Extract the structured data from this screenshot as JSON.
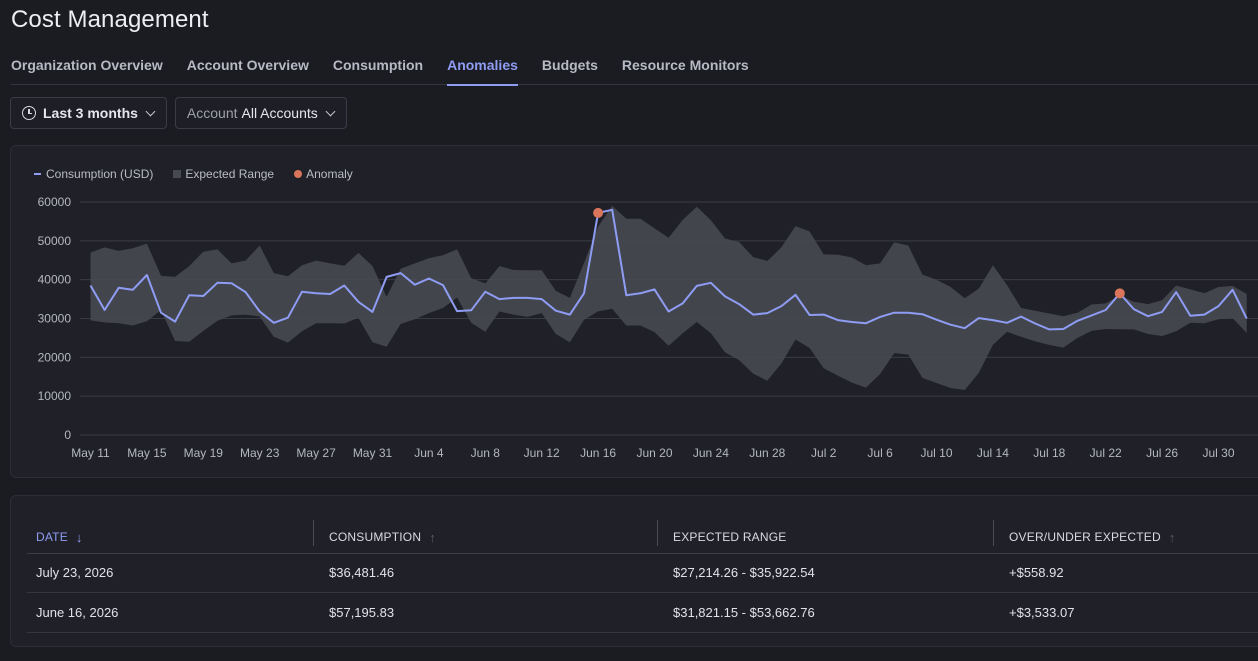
{
  "page": {
    "title": "Cost Management"
  },
  "tabs": [
    {
      "label": "Organization Overview",
      "active": false
    },
    {
      "label": "Account Overview",
      "active": false
    },
    {
      "label": "Consumption",
      "active": false
    },
    {
      "label": "Anomalies",
      "active": true
    },
    {
      "label": "Budgets",
      "active": false
    },
    {
      "label": "Resource Monitors",
      "active": false
    }
  ],
  "filters": {
    "time_range": {
      "value": "Last 3 months",
      "icon": "clock-icon"
    },
    "account": {
      "label": "Account",
      "value": "All Accounts"
    }
  },
  "colors": {
    "accent": "#8e9cf3",
    "anomaly": "#d9755a",
    "range": "#474951"
  },
  "legend": {
    "consumption": "Consumption (USD)",
    "range": "Expected Range",
    "anomaly": "Anomaly"
  },
  "chart_data": {
    "type": "line",
    "ylim": [
      0,
      60000
    ],
    "yticks": [
      "60000",
      "50000",
      "40000",
      "30000",
      "20000",
      "10000",
      "0"
    ],
    "xtick_labels": [
      "May 11",
      "May 15",
      "May 19",
      "May 23",
      "May 27",
      "May 31",
      "Jun 4",
      "Jun 8",
      "Jun 12",
      "Jun 16",
      "Jun 20",
      "Jun 24",
      "Jun 28",
      "Jul 2",
      "Jul 6",
      "Jul 10",
      "Jul 14",
      "Jul 18",
      "Jul 22",
      "Jul 26",
      "Jul 30"
    ],
    "start_date": "2026-05-11",
    "series": [
      {
        "name": "Consumption (USD)",
        "values": [
          38500,
          32200,
          37900,
          37400,
          41200,
          31500,
          29200,
          36000,
          35800,
          39200,
          39100,
          36800,
          31800,
          28900,
          30200,
          36900,
          36500,
          36300,
          38500,
          34300,
          31700,
          40700,
          41700,
          38700,
          40300,
          38600,
          31900,
          32100,
          36900,
          35000,
          35300,
          35300,
          35000,
          32000,
          31000,
          36500,
          57195.83,
          58000,
          36000,
          36500,
          37500,
          31800,
          33900,
          38400,
          39200,
          35700,
          33700,
          31000,
          31400,
          33200,
          36100,
          30900,
          31000,
          29600,
          29100,
          28800,
          30400,
          31500,
          31500,
          31100,
          29700,
          28400,
          27500,
          30100,
          29600,
          28900,
          30500,
          28700,
          27200,
          27300,
          29400,
          30800,
          32200,
          36481.46,
          32400,
          30600,
          31700,
          36800,
          30700,
          31000,
          33200,
          37400,
          30000
        ]
      },
      {
        "name": "Expected Range",
        "low": [
          29500,
          29000,
          28800,
          28200,
          29300,
          32200,
          24200,
          24000,
          26800,
          29400,
          30800,
          31000,
          30500,
          25300,
          23800,
          26700,
          28800,
          28800,
          28700,
          30200,
          23900,
          22700,
          28600,
          29800,
          31400,
          32700,
          35400,
          28900,
          26600,
          31800,
          31000,
          30400,
          31400,
          26000,
          23900,
          29700,
          31821.15,
          32500,
          28200,
          28200,
          26500,
          23000,
          26200,
          29100,
          26200,
          21300,
          19300,
          15800,
          14000,
          18400,
          24600,
          22400,
          17200,
          15300,
          13500,
          12200,
          15700,
          21100,
          20700,
          14700,
          13400,
          12100,
          11600,
          16000,
          23200,
          26600,
          25300,
          24100,
          23200,
          22500,
          25000,
          26800,
          27300,
          27214.26,
          27200,
          26000,
          25500,
          26700,
          28900,
          28800,
          29800,
          30100,
          26300
        ],
        "high": [
          47000,
          48300,
          47400,
          48100,
          49300,
          41000,
          40700,
          43500,
          47200,
          47800,
          44200,
          44900,
          48800,
          41700,
          40900,
          43700,
          44900,
          44200,
          43600,
          46900,
          43500,
          35600,
          42800,
          44200,
          45500,
          46300,
          47800,
          40400,
          39000,
          43500,
          42500,
          42400,
          42400,
          37100,
          35300,
          44300,
          53662.76,
          59000,
          55700,
          55700,
          53200,
          50800,
          55400,
          58800,
          55300,
          50600,
          49700,
          45800,
          44800,
          48300,
          53800,
          52400,
          46500,
          46400,
          45700,
          43700,
          44200,
          49600,
          48800,
          41300,
          40000,
          38100,
          35200,
          37700,
          43700,
          38600,
          32700,
          32000,
          31300,
          30600,
          31500,
          33600,
          33900,
          35922.54,
          34300,
          33700,
          34700,
          38500,
          37500,
          36500,
          38100,
          38400,
          36300
        ]
      }
    ],
    "anomalies": [
      {
        "date": "2026-06-16",
        "value": 57195.83
      },
      {
        "date": "2026-07-23",
        "value": 36481.46
      }
    ]
  },
  "table": {
    "headers": {
      "date": "DATE",
      "consumption": "CONSUMPTION",
      "expected": "EXPECTED RANGE",
      "over_under": "OVER/UNDER EXPECTED"
    },
    "sort_desc_arrow": "↓",
    "sort_asc_arrow": "↑",
    "rows": [
      {
        "date": "July 23, 2026",
        "consumption": "$36,481.46",
        "expected": "$27,214.26 - $35,922.54",
        "over_under": "+$558.92"
      },
      {
        "date": "June 16, 2026",
        "consumption": "$57,195.83",
        "expected": "$31,821.15 - $53,662.76",
        "over_under": "+$3,533.07"
      }
    ]
  }
}
